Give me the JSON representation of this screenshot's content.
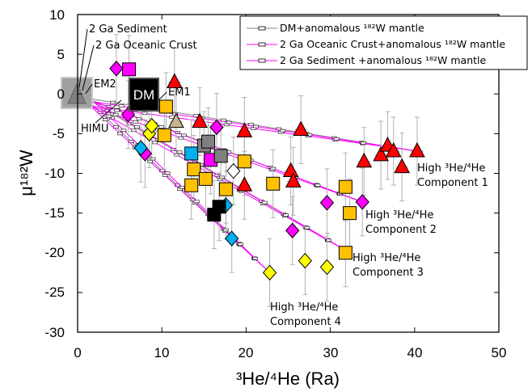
{
  "chart_data": {
    "type": "scatter",
    "title": "",
    "xlabel": "³He/⁴He (Ra)",
    "ylabel": "μ¹⁸²W",
    "xlim": [
      0,
      50
    ],
    "ylim": [
      -30,
      10
    ],
    "xticks": [
      "0",
      "10",
      "20",
      "30",
      "40",
      "50"
    ],
    "yticks": [
      "10",
      "5",
      "0",
      "-5",
      "-10",
      "-15",
      "-20",
      "-25",
      "-30"
    ],
    "grid": false,
    "legend_placement": "top-right",
    "legend": [
      {
        "label": "DM+anomalous ¹⁸²W mantle",
        "color": "#808080"
      },
      {
        "label": "2 Ga Oceanic Crust+anomalous ¹⁸²W mantle",
        "color": "#ff00ff"
      },
      {
        "label": "2 Ga Sediment +anomalous ¹⁸²W mantle",
        "color": "#ff00ff"
      }
    ],
    "end_members": [
      {
        "label": "DM",
        "x": 8,
        "y": 0
      },
      {
        "label": "EM1",
        "x": 5.5,
        "y": -1
      },
      {
        "label": "EM2",
        "x": 0,
        "y": 0
      },
      {
        "label": "HIMU",
        "x": 6.5,
        "y": -2
      },
      {
        "label": "2 Ga Sediment",
        "x": 1.5,
        "y": -1
      },
      {
        "label": "2 Ga Oceanic Crust",
        "x": 2,
        "y": -1
      }
    ],
    "annotations": [
      {
        "line1": "High ³He/⁴He",
        "line2": "Component 1",
        "x": 40.5,
        "y": -10
      },
      {
        "line1": "High ³He/⁴He",
        "line2": "Component 2",
        "x": 34,
        "y": -17
      },
      {
        "line1": "High ³He/⁴He",
        "line2": "Component 3",
        "x": 32,
        "y": -22.5
      },
      {
        "line1": "High ³He/⁴He",
        "line2": "Component 4",
        "x": 22.5,
        "y": -28
      }
    ],
    "series": [
      {
        "marker": "triangle",
        "color": "#ff0000",
        "points": [
          [
            11.5,
            1.5
          ],
          [
            14.5,
            -3.5
          ],
          [
            19.8,
            -4.7
          ],
          [
            26.5,
            -4.5
          ],
          [
            34,
            -8.5
          ],
          [
            36,
            -7.7
          ],
          [
            36.8,
            -6.5
          ],
          [
            37.5,
            -7.2
          ],
          [
            38.5,
            -9.2
          ],
          [
            40.3,
            -7.2
          ],
          [
            25.3,
            -9.7
          ],
          [
            25.6,
            -11
          ],
          [
            19.8,
            -11.5
          ]
        ]
      },
      {
        "marker": "square",
        "color": "#ffc000",
        "points": [
          [
            10.5,
            -1.6
          ],
          [
            10.3,
            -5.2
          ],
          [
            13.8,
            -9.5
          ],
          [
            13.5,
            -11.5
          ],
          [
            15.2,
            -10.7
          ],
          [
            17.6,
            -12
          ],
          [
            19.8,
            -8.5
          ],
          [
            23.2,
            -11.3
          ],
          [
            31.8,
            -11.7
          ],
          [
            32.3,
            -15
          ],
          [
            31.8,
            -20
          ]
        ]
      },
      {
        "marker": "diamond",
        "color": "#ffff00",
        "points": [
          [
            8.5,
            -5
          ],
          [
            8.8,
            -4
          ],
          [
            22.8,
            -22.5
          ],
          [
            27,
            -21
          ],
          [
            29.6,
            -21.8
          ]
        ]
      },
      {
        "marker": "diamond",
        "color": "#ff00ff",
        "points": [
          [
            4.6,
            3.2
          ],
          [
            6,
            -2.6
          ],
          [
            8,
            -7.5
          ],
          [
            16.5,
            -4.2
          ],
          [
            25.5,
            -17.2
          ],
          [
            29.6,
            -13.7
          ],
          [
            33.8,
            -13.6
          ]
        ]
      },
      {
        "marker": "square",
        "color": "#ff00ff",
        "points": [
          [
            6.1,
            3.1
          ],
          [
            15.8,
            -8.3
          ]
        ]
      },
      {
        "marker": "diamond",
        "color": "#00b0f0",
        "points": [
          [
            7.5,
            -6.8
          ],
          [
            17.6,
            -14
          ],
          [
            18.3,
            -18.2
          ]
        ]
      },
      {
        "marker": "square",
        "color": "#00b0f0",
        "points": [
          [
            13.5,
            -7.5
          ]
        ]
      },
      {
        "marker": "square",
        "color": "#808080",
        "points": [
          [
            15,
            -6.5
          ],
          [
            15.5,
            -6
          ],
          [
            17,
            -7.8
          ]
        ]
      },
      {
        "marker": "square",
        "color": "#000000",
        "points": [
          [
            16.2,
            -15.2
          ],
          [
            16.8,
            -14.2
          ]
        ]
      },
      {
        "marker": "diamond",
        "color": "#ffffff",
        "points": [
          [
            18.5,
            -9.7
          ]
        ]
      },
      {
        "marker": "triangle",
        "color": "#c8b48c",
        "points": [
          [
            11.7,
            -3.5
          ]
        ]
      }
    ],
    "mixing_lines": [
      {
        "color": "#808080",
        "from": [
          0.9,
          -0.5
        ],
        "to": [
          40.3,
          -7.2
        ]
      },
      {
        "color": "#808080",
        "from": [
          0.9,
          -0.5
        ],
        "to": [
          33.8,
          -13.6
        ]
      },
      {
        "color": "#808080",
        "from": [
          0.9,
          -0.5
        ],
        "to": [
          32.3,
          -20
        ]
      },
      {
        "color": "#808080",
        "from": [
          0.9,
          -0.5
        ],
        "to": [
          22.8,
          -22.5
        ]
      },
      {
        "color": "#ff00ff",
        "from": [
          1.5,
          -1.5
        ],
        "to": [
          40.3,
          -7.2
        ]
      },
      {
        "color": "#ff00ff",
        "from": [
          1.5,
          -1.5
        ],
        "to": [
          33.8,
          -13.6
        ]
      },
      {
        "color": "#ff00ff",
        "from": [
          1.5,
          -1.5
        ],
        "to": [
          32.3,
          -20
        ]
      },
      {
        "color": "#ff00ff",
        "from": [
          1.5,
          -1.5
        ],
        "to": [
          22.8,
          -22.5
        ]
      },
      {
        "color": "#ff00ff",
        "from": [
          2,
          -1
        ],
        "to": [
          40.3,
          -7.2
        ]
      },
      {
        "color": "#ff00ff",
        "from": [
          2,
          -1
        ],
        "to": [
          33.8,
          -13.6
        ]
      },
      {
        "color": "#ff00ff",
        "from": [
          2,
          -1
        ],
        "to": [
          32.3,
          -20
        ]
      },
      {
        "color": "#ff00ff",
        "from": [
          2,
          -1
        ],
        "to": [
          22.8,
          -22.5
        ]
      }
    ]
  }
}
